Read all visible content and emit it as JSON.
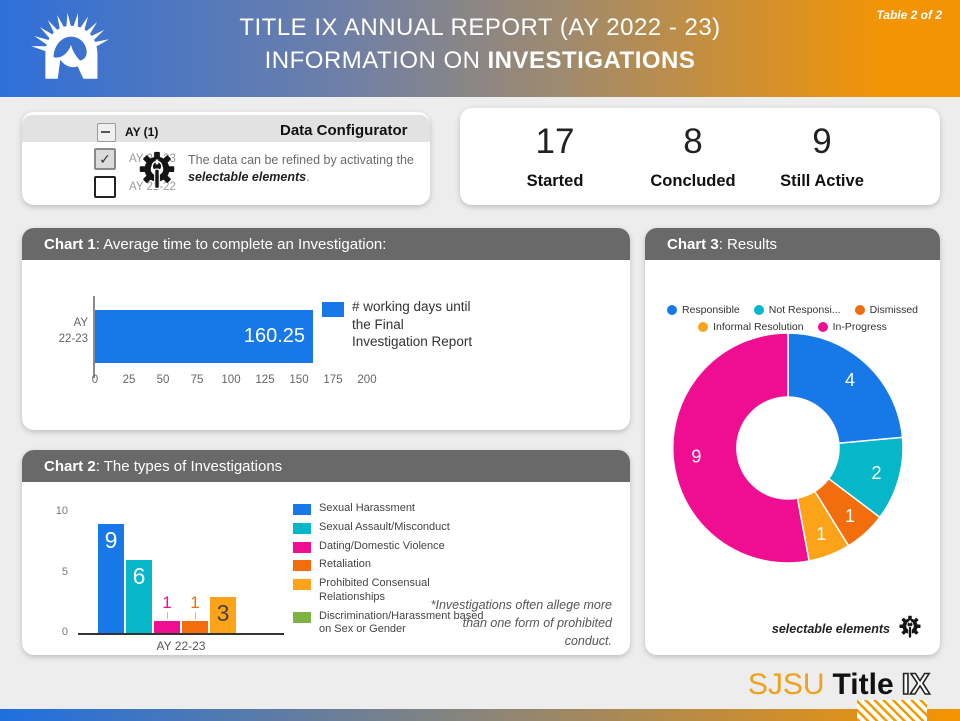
{
  "header": {
    "table_label": "Table 2 of 2",
    "title_line1": "TITLE IX ANNUAL REPORT (AY 2022 - 23)",
    "title_line2_prefix": "INFORMATION ON",
    "title_line2_bold": "INVESTIGATIONS",
    "gradient_left": "#2e6fd9",
    "gradient_right": "#f29405"
  },
  "configurator": {
    "group_label": "AY (1)",
    "title": "Data Configurator",
    "options": [
      {
        "label": "AY 22-23",
        "checked": true
      },
      {
        "label": "AY 21-22",
        "checked": false
      }
    ],
    "note_line1": "The data can be refined by activating the",
    "note_bold": "selectable elements",
    "note_suffix": "."
  },
  "stats": [
    {
      "value": "17",
      "label": "Started"
    },
    {
      "value": "8",
      "label": "Concluded"
    },
    {
      "value": "9",
      "label": "Still Active"
    }
  ],
  "footer": {
    "sjsu": "SJSU",
    "title_word": "Title",
    "ix": "IX"
  },
  "chart_data": [
    {
      "id": "chart1",
      "type": "bar",
      "orientation": "horizontal",
      "title_bold": "Chart 1",
      "title_rest": ": Average time to complete an Investigation:",
      "categories": [
        "AY 22-23"
      ],
      "series": [
        {
          "name": "# working days until the Final Investigation Report",
          "values": [
            160.25
          ],
          "color": "#1778e8"
        }
      ],
      "xlim": [
        0,
        200
      ],
      "xticks": [
        0,
        25,
        50,
        75,
        100,
        125,
        150,
        175,
        200
      ],
      "grid": false,
      "legend_position": "right"
    },
    {
      "id": "chart2",
      "type": "bar",
      "orientation": "vertical",
      "title_bold": "Chart 2",
      "title_rest": ": The types of Investigations",
      "categories": [
        "AY 22-23"
      ],
      "series": [
        {
          "name": "Sexual Harassment",
          "values": [
            9
          ],
          "color": "#1778e8",
          "label_style": "inside-white"
        },
        {
          "name": "Sexual Assault/Misconduct",
          "values": [
            6
          ],
          "color": "#06b6c9",
          "label_style": "inside-white"
        },
        {
          "name": "Dating/Domestic Violence",
          "values": [
            1
          ],
          "color": "#ef0d92",
          "label_style": "above"
        },
        {
          "name": "Retaliation",
          "values": [
            1
          ],
          "color": "#f26d0c",
          "label_style": "above"
        },
        {
          "name": "Prohibited Consensual Relationships",
          "values": [
            3
          ],
          "color": "#fca31a",
          "label_style": "inside-dark"
        },
        {
          "name": "Discrimination/Harassment based on Sex or Gender",
          "values": [
            0
          ],
          "color": "#7cb342",
          "label_style": "none"
        }
      ],
      "ylim": [
        0,
        10
      ],
      "yticks": [
        0,
        5,
        10
      ],
      "grid": false,
      "legend_position": "right",
      "footnote": "*Investigations often allege more than one form of prohibited conduct."
    },
    {
      "id": "chart3",
      "type": "pie",
      "donut": true,
      "title_bold": "Chart 3",
      "title_rest": ": Results",
      "slices": [
        {
          "name": "Responsible",
          "legend_label": "Responsible",
          "value": 4,
          "color": "#1778e8"
        },
        {
          "name": "Not Responsible",
          "legend_label": "Not Responsi...",
          "value": 2,
          "color": "#06b6c9"
        },
        {
          "name": "Dismissed",
          "legend_label": "Dismissed",
          "value": 1,
          "color": "#f26d0c"
        },
        {
          "name": "Informal Resolution",
          "legend_label": "Informal Resolution",
          "value": 1,
          "color": "#fca31a"
        },
        {
          "name": "In-Progress",
          "legend_label": "In-Progress",
          "value": 9,
          "color": "#ef0d92"
        }
      ],
      "legend_position": "top",
      "note": "selectable elements"
    }
  ]
}
